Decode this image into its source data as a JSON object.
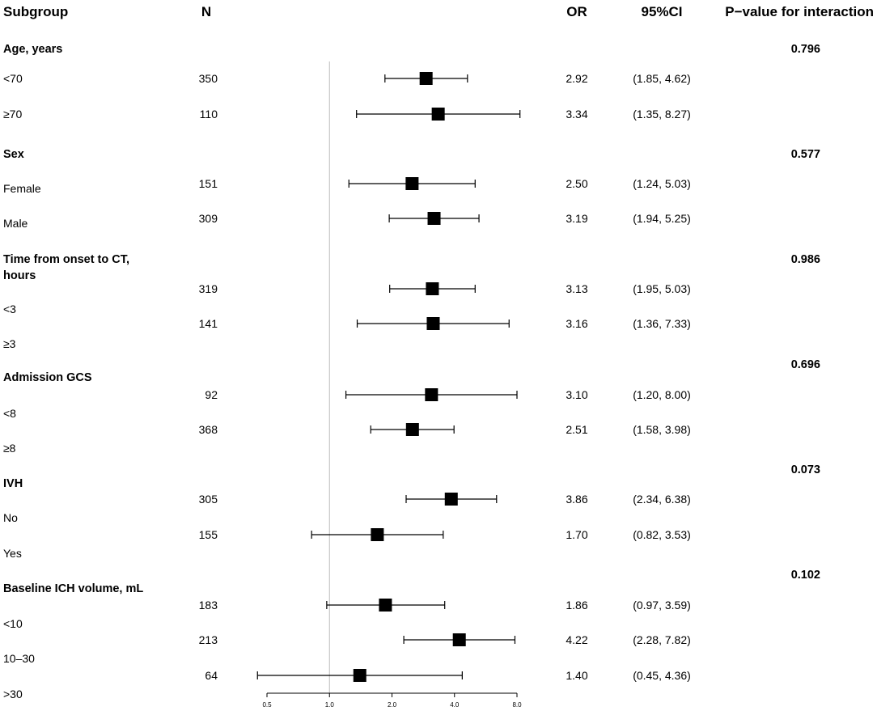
{
  "chart_data": {
    "type": "forest",
    "headers": {
      "subgroup": "Subgroup",
      "n": "N",
      "or": "OR",
      "ci": "95%CI",
      "p": "P−value for interaction"
    },
    "x_scale": "log2",
    "xlim": [
      0.5,
      8.0
    ],
    "reference_line": 1.0,
    "x_ticks": [
      "0.5",
      "1.0",
      "2.0",
      "4.0",
      "8.0"
    ],
    "x_tick_values": [
      0.5,
      1.0,
      2.0,
      4.0,
      8.0
    ],
    "groups": [
      {
        "title": "Age, years",
        "p": "0.796",
        "rows": [
          {
            "label": "<70",
            "n": "350",
            "or": 2.92,
            "lo": 1.85,
            "hi": 4.62,
            "or_text": "2.92",
            "ci_text": "(1.85, 4.62)"
          },
          {
            "label": "≥70",
            "n": "110",
            "or": 3.34,
            "lo": 1.35,
            "hi": 8.27,
            "or_text": "3.34",
            "ci_text": "(1.35, 8.27)"
          }
        ]
      },
      {
        "title": "Sex",
        "p": "0.577",
        "rows": [
          {
            "label": "Female",
            "n": "151",
            "or": 2.5,
            "lo": 1.24,
            "hi": 5.03,
            "or_text": "2.50",
            "ci_text": "(1.24, 5.03)"
          },
          {
            "label": "Male",
            "n": "309",
            "or": 3.19,
            "lo": 1.94,
            "hi": 5.25,
            "or_text": "3.19",
            "ci_text": "(1.94, 5.25)"
          }
        ]
      },
      {
        "title": "Time from onset to CT, hours",
        "title_lines": [
          "Time from onset to CT,",
          "hours"
        ],
        "p": "0.986",
        "rows": [
          {
            "label": "<3",
            "n": "319",
            "or": 3.13,
            "lo": 1.95,
            "hi": 5.03,
            "or_text": "3.13",
            "ci_text": "(1.95, 5.03)"
          },
          {
            "label": "≥3",
            "n": "141",
            "or": 3.16,
            "lo": 1.36,
            "hi": 7.33,
            "or_text": "3.16",
            "ci_text": "(1.36, 7.33)"
          }
        ]
      },
      {
        "title": "Admission GCS",
        "p": "0.696",
        "rows": [
          {
            "label": "<8",
            "n": "92",
            "or": 3.1,
            "lo": 1.2,
            "hi": 8.0,
            "or_text": "3.10",
            "ci_text": "(1.20, 8.00)"
          },
          {
            "label": "≥8",
            "n": "368",
            "or": 2.51,
            "lo": 1.58,
            "hi": 3.98,
            "or_text": "2.51",
            "ci_text": "(1.58, 3.98)"
          }
        ]
      },
      {
        "title": "IVH",
        "p": "0.073",
        "rows": [
          {
            "label": "No",
            "n": "305",
            "or": 3.86,
            "lo": 2.34,
            "hi": 6.38,
            "or_text": "3.86",
            "ci_text": "(2.34, 6.38)"
          },
          {
            "label": "Yes",
            "n": "155",
            "or": 1.7,
            "lo": 0.82,
            "hi": 3.53,
            "or_text": "1.70",
            "ci_text": "(0.82, 3.53)"
          }
        ]
      },
      {
        "title": "Baseline ICH volume, mL",
        "p": "0.102",
        "rows": [
          {
            "label": "<10",
            "n": "183",
            "or": 1.86,
            "lo": 0.97,
            "hi": 3.59,
            "or_text": "1.86",
            "ci_text": "(0.97, 3.59)"
          },
          {
            "label": "10–30",
            "n": "213",
            "or": 4.22,
            "lo": 2.28,
            "hi": 7.82,
            "or_text": "4.22",
            "ci_text": "(2.28, 7.82)"
          },
          {
            "label": ">30",
            "n": "64",
            "or": 1.4,
            "lo": 0.45,
            "hi": 4.36,
            "or_text": "1.40",
            "ci_text": "(0.45, 4.36)"
          }
        ]
      }
    ]
  }
}
